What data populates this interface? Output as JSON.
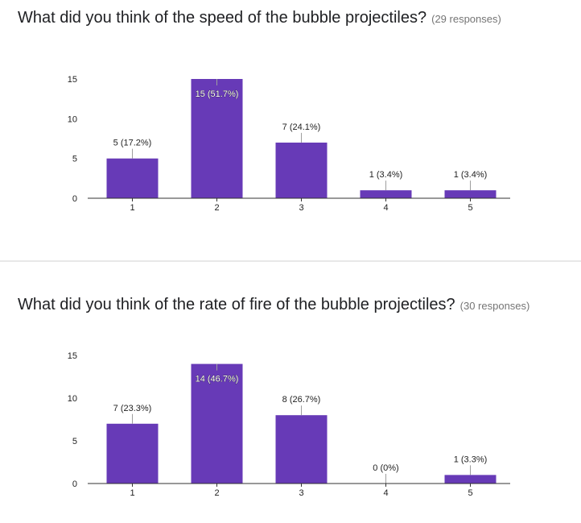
{
  "questions": [
    {
      "title": "What did you think of the speed of the bubble projectiles?",
      "responses": "(29 responses)"
    },
    {
      "title": "What did you think of the rate of fire of the bubble projectiles?",
      "responses": "(30 responses)"
    }
  ],
  "chart_data": [
    {
      "type": "bar",
      "categories": [
        "1",
        "2",
        "3",
        "4",
        "5"
      ],
      "values": [
        5,
        15,
        7,
        1,
        1
      ],
      "data_labels": [
        "5 (17.2%)",
        "15 (51.7%)",
        "7 (24.1%)",
        "1 (3.4%)",
        "1 (3.4%)"
      ],
      "y_ticks": [
        "0",
        "5",
        "10",
        "15"
      ],
      "ylim": [
        0,
        15
      ],
      "grid": false,
      "bar_color": "#673ab7"
    },
    {
      "type": "bar",
      "categories": [
        "1",
        "2",
        "3",
        "4",
        "5"
      ],
      "values": [
        7,
        14,
        8,
        0,
        1
      ],
      "data_labels": [
        "7 (23.3%)",
        "14 (46.7%)",
        "8 (26.7%)",
        "0 (0%)",
        "1 (3.3%)"
      ],
      "y_ticks": [
        "0",
        "5",
        "10",
        "15"
      ],
      "ylim": [
        0,
        15
      ],
      "grid": false,
      "bar_color": "#673ab7"
    }
  ]
}
